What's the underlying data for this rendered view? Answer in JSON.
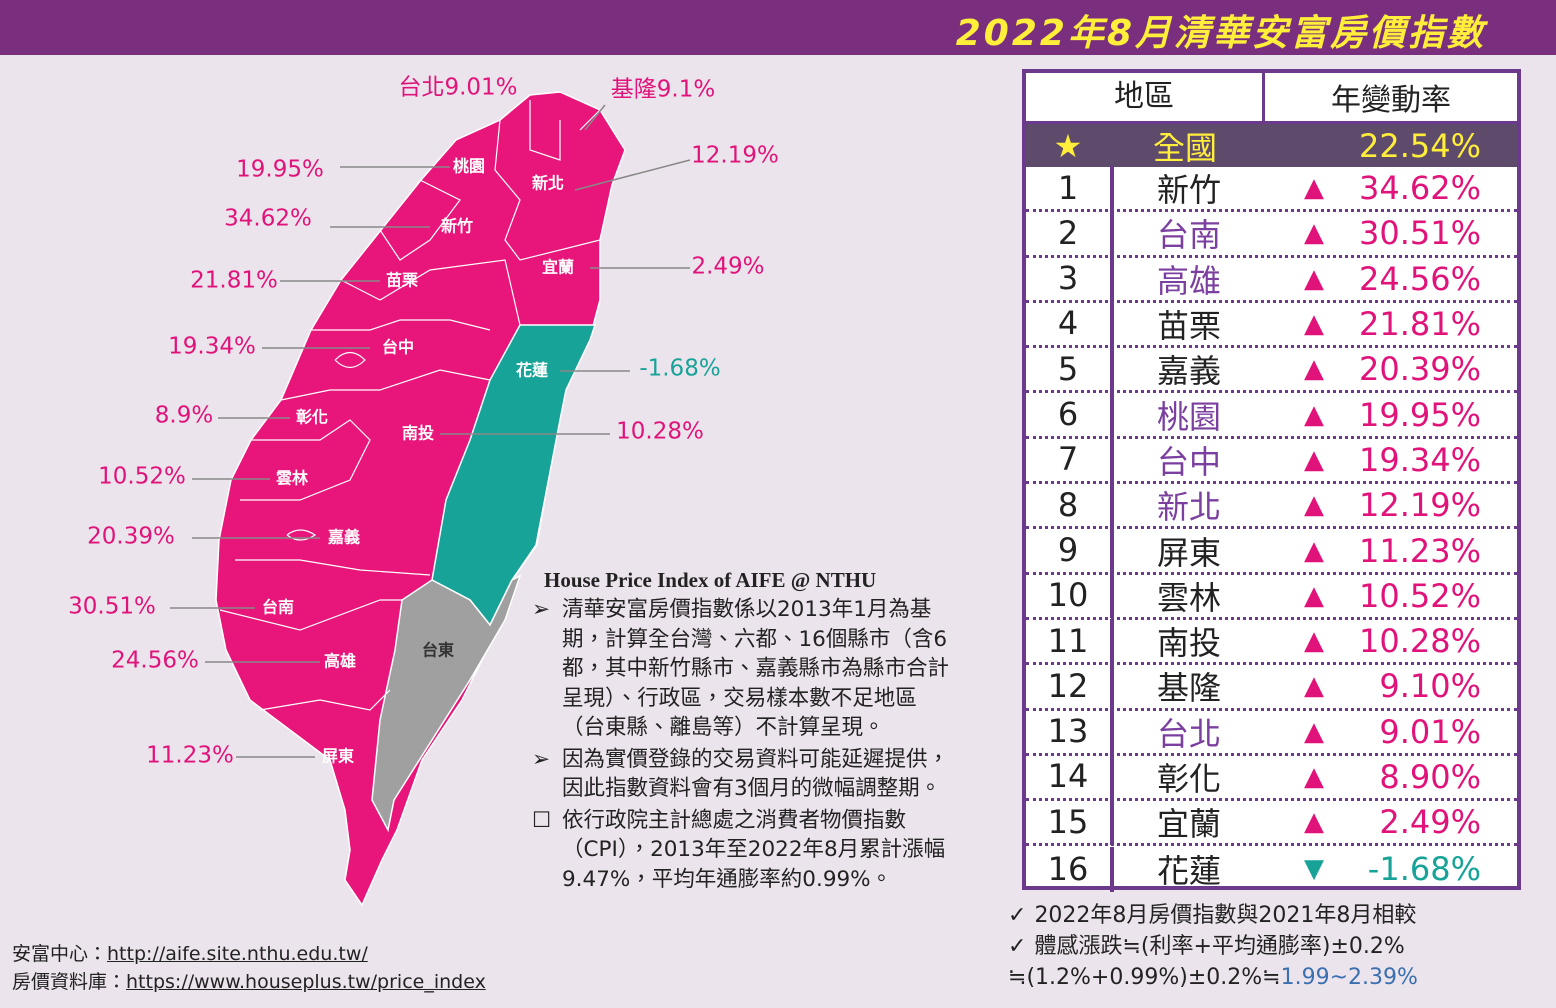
{
  "header": {
    "title": "2022年8月清華安富房價指數"
  },
  "map": {
    "labels": [
      {
        "text": "台北9.01%",
        "color": "#e0137a"
      },
      {
        "text": "基隆9.1%",
        "color": "#e0137a"
      },
      {
        "text": "19.95%",
        "color": "#e0137a"
      },
      {
        "text": "12.19%",
        "color": "#e0137a"
      },
      {
        "text": "34.62%",
        "color": "#e0137a"
      },
      {
        "text": "2.49%",
        "color": "#e0137a"
      },
      {
        "text": "21.81%",
        "color": "#e0137a"
      },
      {
        "text": "19.34%",
        "color": "#e0137a"
      },
      {
        "text": "-1.68%",
        "color": "#17a398"
      },
      {
        "text": "8.9%",
        "color": "#e0137a"
      },
      {
        "text": "10.28%",
        "color": "#e0137a"
      },
      {
        "text": "10.52%",
        "color": "#e0137a"
      },
      {
        "text": "20.39%",
        "color": "#e0137a"
      },
      {
        "text": "30.51%",
        "color": "#e0137a"
      },
      {
        "text": "24.56%",
        "color": "#e0137a"
      },
      {
        "text": "11.23%",
        "color": "#e0137a"
      }
    ],
    "region_names": [
      "桃園",
      "新北",
      "新竹",
      "宜蘭",
      "苗栗",
      "台中",
      "花蓮",
      "彰化",
      "南投",
      "雲林",
      "嘉義",
      "台南",
      "高雄",
      "台東",
      "屏東"
    ]
  },
  "info": {
    "heading": "House Price Index of AIFE @ NTHU",
    "bullets": [
      "清華安富房價指數係以2013年1月為基期，計算全台灣、六都、16個縣市（含6都，其中新竹縣市、嘉義縣市為縣市合計呈現）、行政區，交易樣本數不足地區（台東縣、離島等）不計算呈現。",
      "因為實價登錄的交易資料可能延遲提供，因此指數資料會有3個月的微幅調整期。",
      "依行政院主計總處之消費者物價指數（CPI），2013年至2022年8月累計漲幅9.47%，平均年通膨率約0.99%。"
    ]
  },
  "footer": [
    {
      "label": "安富中心：",
      "url": "http://aife.site.nthu.edu.tw/"
    },
    {
      "label": "房價資料庫：",
      "url": "https://www.houseplus.tw/price_index"
    }
  ],
  "table": {
    "header": [
      "地區",
      "年變動率"
    ],
    "national": {
      "name": "全國",
      "change": "22.54%"
    },
    "rows": [
      {
        "rank": "1",
        "name": "新竹",
        "name_color": "#222222",
        "trend": "▲",
        "trend_color": "#e0137a",
        "change": "34.62%"
      },
      {
        "rank": "2",
        "name": "台南",
        "name_color": "#7b3fa0",
        "trend": "▲",
        "trend_color": "#e0137a",
        "change": "30.51%"
      },
      {
        "rank": "3",
        "name": "高雄",
        "name_color": "#7b3fa0",
        "trend": "▲",
        "trend_color": "#e0137a",
        "change": "24.56%"
      },
      {
        "rank": "4",
        "name": "苗栗",
        "name_color": "#222222",
        "trend": "▲",
        "trend_color": "#e0137a",
        "change": "21.81%"
      },
      {
        "rank": "5",
        "name": "嘉義",
        "name_color": "#222222",
        "trend": "▲",
        "trend_color": "#e0137a",
        "change": "20.39%"
      },
      {
        "rank": "6",
        "name": "桃園",
        "name_color": "#7b3fa0",
        "trend": "▲",
        "trend_color": "#e0137a",
        "change": "19.95%"
      },
      {
        "rank": "7",
        "name": "台中",
        "name_color": "#7b3fa0",
        "trend": "▲",
        "trend_color": "#e0137a",
        "change": "19.34%"
      },
      {
        "rank": "8",
        "name": "新北",
        "name_color": "#7b3fa0",
        "trend": "▲",
        "trend_color": "#e0137a",
        "change": "12.19%"
      },
      {
        "rank": "9",
        "name": "屏東",
        "name_color": "#222222",
        "trend": "▲",
        "trend_color": "#e0137a",
        "change": "11.23%"
      },
      {
        "rank": "10",
        "name": "雲林",
        "name_color": "#222222",
        "trend": "▲",
        "trend_color": "#e0137a",
        "change": "10.52%"
      },
      {
        "rank": "11",
        "name": "南投",
        "name_color": "#222222",
        "trend": "▲",
        "trend_color": "#e0137a",
        "change": "10.28%"
      },
      {
        "rank": "12",
        "name": "基隆",
        "name_color": "#222222",
        "trend": "▲",
        "trend_color": "#e0137a",
        "change": "9.10%"
      },
      {
        "rank": "13",
        "name": "台北",
        "name_color": "#7b3fa0",
        "trend": "▲",
        "trend_color": "#e0137a",
        "change": "9.01%"
      },
      {
        "rank": "14",
        "name": "彰化",
        "name_color": "#222222",
        "trend": "▲",
        "trend_color": "#e0137a",
        "change": "8.90%"
      },
      {
        "rank": "15",
        "name": "宜蘭",
        "name_color": "#222222",
        "trend": "▲",
        "trend_color": "#e0137a",
        "change": "2.49%"
      },
      {
        "rank": "16",
        "name": "花蓮",
        "name_color": "#222222",
        "trend": "▼",
        "trend_color": "#17a398",
        "change": "-1.68%"
      }
    ]
  },
  "notes": [
    "2022年8月房價指數與2021年8月相較",
    "體感漲跌≒(利率+平均通膨率)±0.2%",
    [
      "≒(1.2%+0.99%)±0.2%≒",
      "1.99~2.39%"
    ]
  ]
}
